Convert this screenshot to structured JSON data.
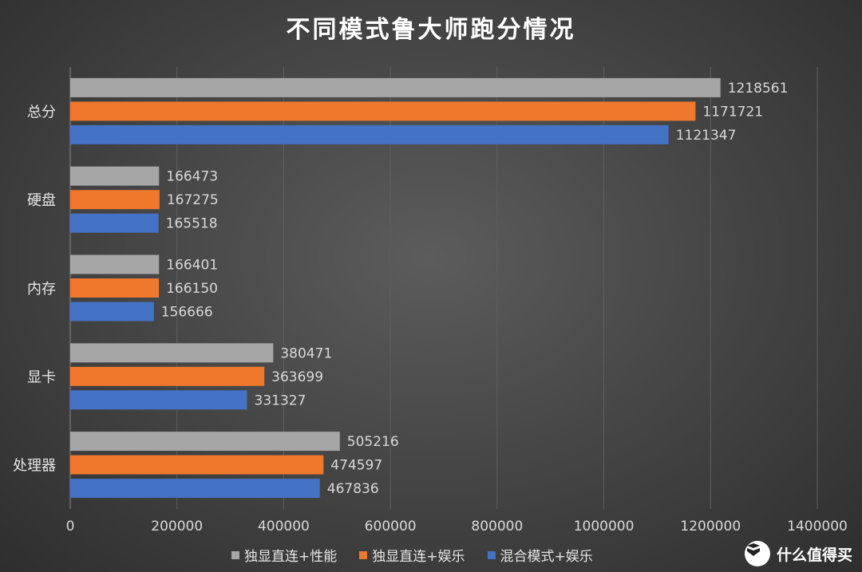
{
  "chart_data": {
    "type": "bar",
    "orientation": "horizontal",
    "title": "不同模式鲁大师跑分情况",
    "categories": [
      "总分",
      "硬盘",
      "内存",
      "显卡",
      "处理器"
    ],
    "series": [
      {
        "name": "独显直连+性能",
        "color": "#a6a6a6",
        "values": [
          1218561,
          166473,
          166401,
          380471,
          505216
        ]
      },
      {
        "name": "独显直连+娱乐",
        "color": "#f0782d",
        "values": [
          1171721,
          167275,
          166150,
          363699,
          474597
        ]
      },
      {
        "name": "混合模式+娱乐",
        "color": "#4472c4",
        "values": [
          1121347,
          165518,
          156666,
          331327,
          467836
        ]
      }
    ],
    "xlim": [
      0,
      1400000
    ],
    "x_ticks": [
      "0",
      "200000",
      "400000",
      "600000",
      "800000",
      "1000000",
      "1200000",
      "1400000"
    ],
    "grid": true,
    "legend_position": "bottom",
    "data_labels": true
  },
  "watermark": {
    "text": "什么值得买",
    "logo_glyph": "值"
  }
}
